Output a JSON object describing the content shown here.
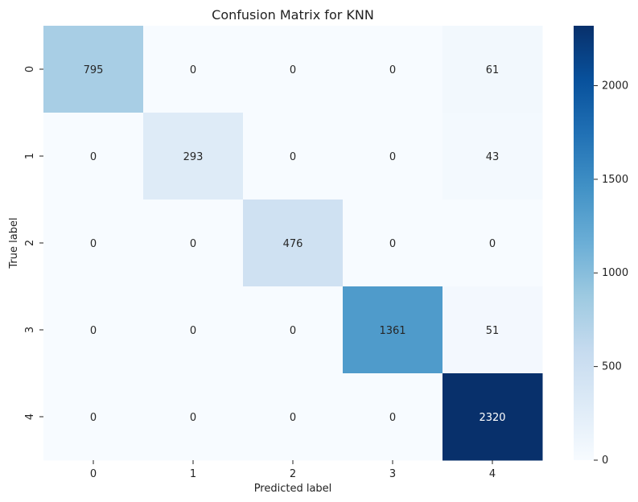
{
  "chart_data": {
    "type": "heatmap",
    "title": "Confusion Matrix for KNN",
    "xlabel": "Predicted label",
    "ylabel": "True label",
    "x_categories": [
      "0",
      "1",
      "2",
      "3",
      "4"
    ],
    "y_categories": [
      "0",
      "1",
      "2",
      "3",
      "4"
    ],
    "values": [
      [
        795,
        0,
        0,
        0,
        61
      ],
      [
        0,
        293,
        0,
        0,
        43
      ],
      [
        0,
        0,
        476,
        0,
        0
      ],
      [
        0,
        0,
        0,
        1361,
        51
      ],
      [
        0,
        0,
        0,
        0,
        2320
      ]
    ],
    "colormap": "Blues",
    "vmin": 0,
    "vmax": 2320,
    "colorbar_ticks": [
      0,
      500,
      1000,
      1500,
      2000
    ],
    "colors": {
      "low": "#f7fbff",
      "high": "#08306b"
    }
  }
}
